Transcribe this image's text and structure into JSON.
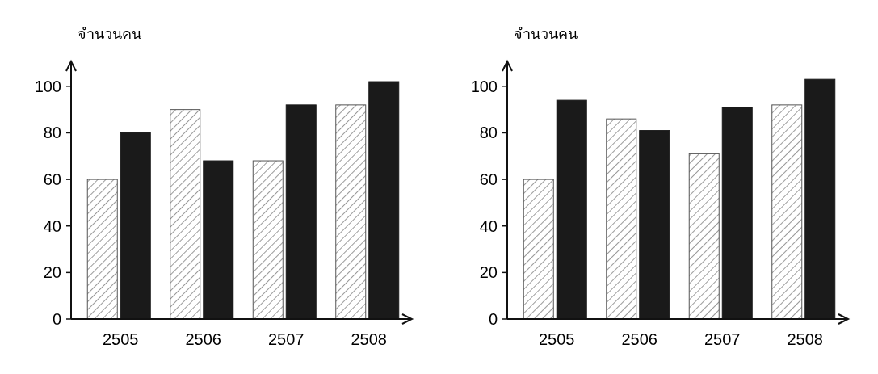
{
  "chart_data": [
    {
      "type": "bar",
      "ylabel": "จำนวนคน",
      "categories": [
        "2505",
        "2506",
        "2507",
        "2508"
      ],
      "ylim": [
        0,
        110
      ],
      "yticks": [
        0,
        20,
        40,
        60,
        80,
        100
      ],
      "grid": false,
      "series": [
        {
          "color": "#555555",
          "values": [
            60,
            90,
            68,
            92
          ]
        },
        {
          "color": "#1a1a1a",
          "values": [
            80,
            68,
            92,
            102
          ]
        }
      ]
    },
    {
      "type": "bar",
      "ylabel": "จำนวนคน",
      "categories": [
        "2505",
        "2506",
        "2507",
        "2508"
      ],
      "ylim": [
        0,
        110
      ],
      "yticks": [
        0,
        20,
        40,
        60,
        80,
        100
      ],
      "grid": false,
      "series": [
        {
          "color": "#555555",
          "values": [
            60,
            86,
            71,
            92
          ]
        },
        {
          "color": "#1a1a1a",
          "values": [
            94,
            81,
            91,
            103
          ]
        }
      ]
    }
  ]
}
